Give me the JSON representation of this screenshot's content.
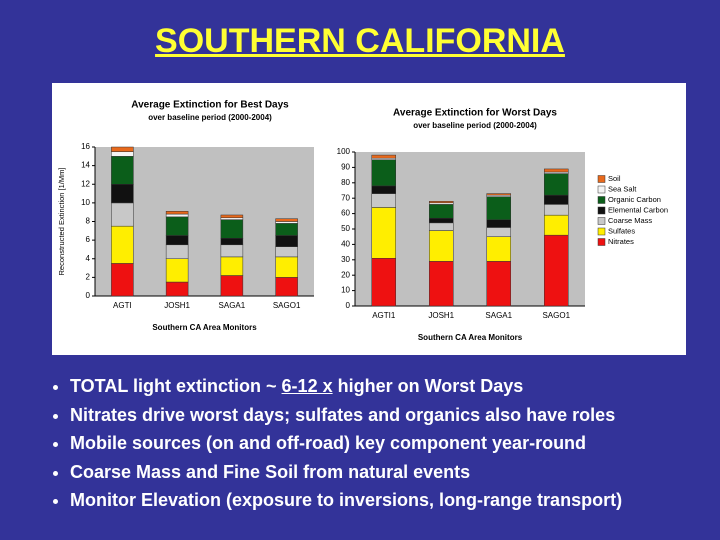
{
  "slide": {
    "title": "SOUTHERN CALIFORNIA",
    "bullets": [
      {
        "text": "TOTAL light extinction ~",
        "emphasis": "6-12 x",
        "rest": "higher on Worst Days"
      },
      "Nitrates drive worst days; sulfates and organics also have roles",
      "Mobile sources (on and off-road) key component year-round",
      "Coarse Mass and Fine Soil from natural events",
      "Monitor Elevation (exposure to inversions, long-range transport)"
    ]
  },
  "chart_data": [
    {
      "type": "bar",
      "stacked": true,
      "title": "Average Extinction for Best Days",
      "subtitle": "over baseline period (2000-2004)",
      "xlabel": "Southern CA Area Monitors",
      "ylabel": "Reconstructed Extinction [1/Mm]",
      "categories": [
        "AGTI",
        "JOSH1",
        "SAGA1",
        "SAGO1"
      ],
      "series": [
        {
          "color": "#ee1111",
          "values": [
            3.5,
            1.5,
            2.2,
            2
          ]
        },
        {
          "color": "#ffee00",
          "values": [
            4,
            2.5,
            2,
            2.2
          ]
        },
        {
          "color": "#c8c8c8",
          "values": [
            2.5,
            1.5,
            1.3,
            1.1
          ]
        },
        {
          "color": "#111111",
          "values": [
            2,
            1,
            0.7,
            1.2
          ]
        },
        {
          "color": "#0b5e1a",
          "values": [
            3,
            2,
            2,
            1.3
          ]
        },
        {
          "color": "#f4f4f4",
          "values": [
            0.5,
            0.3,
            0.2,
            0.2
          ]
        },
        {
          "color": "#e8691c",
          "values": [
            0.5,
            0.3,
            0.3,
            0.3
          ]
        }
      ],
      "ylim": [
        0,
        16
      ],
      "yticks": [
        0,
        2,
        4,
        6,
        8,
        10,
        12,
        14,
        16
      ]
    },
    {
      "type": "bar",
      "stacked": true,
      "title": "Average Extinction for Worst Days",
      "subtitle": "over baseline period (2000-2004)",
      "xlabel": "Southern CA Area Monitors",
      "categories": [
        "AGTI1",
        "JOSH1",
        "SAGA1",
        "SAGO1"
      ],
      "series": [
        {
          "name": "Nitrates",
          "color": "#ee1111",
          "values": [
            31,
            29,
            29,
            46
          ]
        },
        {
          "name": "Sulfates",
          "color": "#ffee00",
          "values": [
            33,
            20,
            16,
            13
          ]
        },
        {
          "name": "Coarse Mass",
          "color": "#c8c8c8",
          "values": [
            9,
            5,
            6,
            7
          ]
        },
        {
          "name": "Elemental Carbon",
          "color": "#111111",
          "values": [
            5,
            3,
            5,
            6
          ]
        },
        {
          "name": "Organic Carbon",
          "color": "#0b5e1a",
          "values": [
            17,
            9,
            15,
            14
          ]
        },
        {
          "name": "Sea Salt",
          "color": "#f4f4f4",
          "values": [
            1,
            1,
            1,
            1
          ]
        },
        {
          "name": "Soil",
          "color": "#e8691c",
          "values": [
            2,
            1,
            1,
            2
          ]
        }
      ],
      "ylim": [
        0,
        100
      ],
      "yticks": [
        0,
        10,
        20,
        30,
        40,
        50,
        60,
        70,
        80,
        90,
        100
      ],
      "legend": "right"
    }
  ]
}
